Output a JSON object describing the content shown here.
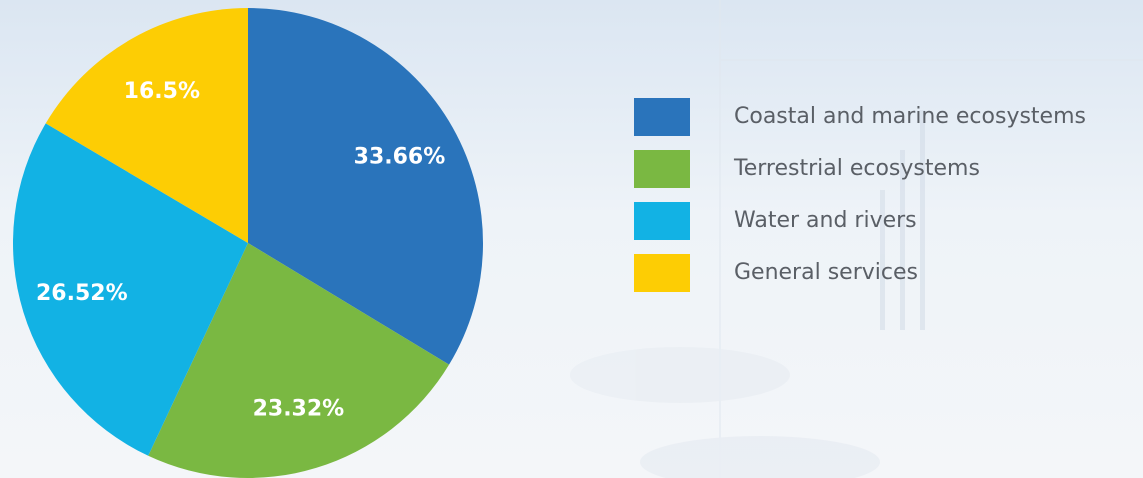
{
  "chart_data": {
    "type": "pie",
    "categories": [
      "Coastal and marine ecosystems",
      "Terrestrial ecosystems",
      "Water and rivers",
      "General services"
    ],
    "values": [
      33.66,
      23.32,
      26.52,
      16.5
    ],
    "value_labels": [
      "33.66%",
      "23.32%",
      "26.52%",
      "16.5%"
    ],
    "colors": [
      "#2a74bb",
      "#7ab842",
      "#12b2e4",
      "#fdcd04"
    ]
  }
}
